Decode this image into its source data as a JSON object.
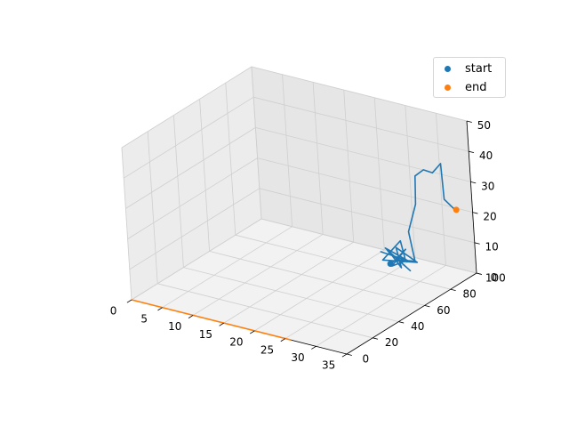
{
  "chart_data": {
    "type": "line3d",
    "title": "",
    "xlabel": "",
    "ylabel": "",
    "zlabel": "",
    "xlim": [
      0,
      35
    ],
    "ylim": [
      0,
      100
    ],
    "zlim": [
      0,
      50
    ],
    "x_ticks": [
      "0",
      "5",
      "10",
      "15",
      "20",
      "25",
      "30",
      "35"
    ],
    "y_ticks": [
      "0",
      "20",
      "40",
      "60",
      "80",
      "100"
    ],
    "z_ticks": [
      "0",
      "10",
      "20",
      "30",
      "40",
      "50"
    ],
    "grid": true,
    "legend": {
      "position": "top-right",
      "entries": [
        {
          "label": "start",
          "color": "#1f77b4"
        },
        {
          "label": "end",
          "color": "#ff7f0e"
        }
      ]
    },
    "series": [
      {
        "color": "#1f77b4",
        "points": [
          [
            28,
            68,
            8
          ],
          [
            29,
            70,
            10
          ],
          [
            27,
            66,
            12
          ],
          [
            30,
            72,
            9
          ],
          [
            28,
            65,
            14
          ],
          [
            31,
            69,
            7
          ],
          [
            27,
            71,
            11
          ],
          [
            29,
            64,
            13
          ],
          [
            30,
            67,
            8
          ],
          [
            28,
            73,
            12
          ],
          [
            32,
            70,
            10
          ],
          [
            27,
            67,
            9
          ],
          [
            29,
            72,
            15
          ],
          [
            31,
            66,
            11
          ],
          [
            28,
            69,
            7
          ],
          [
            30,
            71,
            13
          ],
          [
            29,
            68,
            10
          ],
          [
            31,
            73,
            9
          ],
          [
            30,
            74,
            18
          ],
          [
            31,
            76,
            27
          ],
          [
            31,
            77,
            36
          ],
          [
            32,
            79,
            38
          ],
          [
            33,
            81,
            37
          ],
          [
            34,
            83,
            40
          ],
          [
            34,
            84,
            28
          ],
          [
            35,
            86,
            25
          ],
          [
            35,
            87,
            24
          ]
        ]
      },
      {
        "color": "#ff7f0e",
        "points": [
          [
            0,
            0,
            0
          ],
          [
            26,
            0,
            0
          ]
        ]
      }
    ],
    "start_point": [
      28,
      68,
      8
    ],
    "end_point": [
      35,
      88,
      24
    ]
  }
}
